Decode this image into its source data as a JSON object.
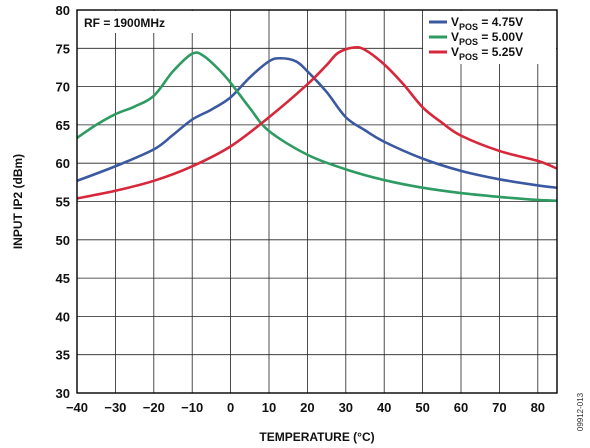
{
  "chart_data": {
    "type": "line",
    "xlabel": "TEMPERATURE (°C)",
    "ylabel": "INPUT IP2 (dBm)",
    "xlim": [
      -40,
      85
    ],
    "ylim": [
      30,
      80
    ],
    "xticks": [
      -40,
      -30,
      -20,
      -10,
      0,
      10,
      20,
      30,
      40,
      50,
      60,
      70,
      80
    ],
    "yticks": [
      30,
      35,
      40,
      45,
      50,
      55,
      60,
      65,
      70,
      75,
      80
    ],
    "grid": true,
    "legend_position": "top-right",
    "annotation": "RF = 1900MHz",
    "figure_id": "09912-013",
    "series": [
      {
        "name": "VPOS = 4.75V",
        "name_parts": {
          "main": "V",
          "sub": "POS",
          "rest": " = 4.75V"
        },
        "color": "#3a59a0",
        "x": [
          -40,
          -30,
          -20,
          -15,
          -10,
          -5,
          0,
          5,
          10,
          13,
          17,
          20,
          25,
          30,
          35,
          40,
          50,
          60,
          70,
          80,
          85
        ],
        "y": [
          57.7,
          59.6,
          61.8,
          63.7,
          65.7,
          67.0,
          68.6,
          71.2,
          73.3,
          73.7,
          73.3,
          72.0,
          69.3,
          66.0,
          64.3,
          62.8,
          60.6,
          59.0,
          57.9,
          57.1,
          56.8
        ]
      },
      {
        "name": "VPOS = 5.00V",
        "name_parts": {
          "main": "V",
          "sub": "POS",
          "rest": " = 5.00V"
        },
        "color": "#2e9b63",
        "x": [
          -40,
          -35,
          -30,
          -25,
          -20,
          -15,
          -10,
          -7,
          -3,
          0,
          5,
          10,
          20,
          30,
          40,
          50,
          60,
          70,
          80,
          85
        ],
        "y": [
          63.3,
          65.0,
          66.4,
          67.4,
          68.8,
          72.0,
          74.3,
          74.0,
          72.2,
          70.5,
          67.2,
          64.2,
          61.1,
          59.2,
          57.8,
          56.8,
          56.1,
          55.6,
          55.2,
          55.1
        ]
      },
      {
        "name": "VPOS = 5.25V",
        "name_parts": {
          "main": "V",
          "sub": "POS",
          "rest": " = 5.25V"
        },
        "color": "#d8263a",
        "x": [
          -40,
          -30,
          -20,
          -10,
          0,
          10,
          20,
          25,
          28,
          32,
          35,
          40,
          45,
          50,
          55,
          60,
          70,
          80,
          85
        ],
        "y": [
          55.4,
          56.4,
          57.7,
          59.6,
          62.2,
          66.0,
          70.3,
          72.8,
          74.4,
          75.1,
          74.8,
          72.9,
          70.3,
          67.3,
          65.3,
          63.6,
          61.6,
          60.3,
          59.3
        ]
      }
    ]
  }
}
